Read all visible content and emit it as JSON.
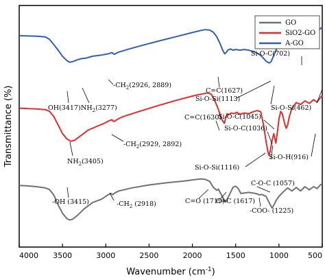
{
  "chart_data": {
    "type": "line",
    "title": "",
    "xlabel": "Wavenumber (cm",
    "xlabel_sup": "-1",
    "xlabel_close": ")",
    "ylabel": "Transmittance (%)",
    "xlim": [
      4000,
      500
    ],
    "x_ticks": [
      4000,
      3500,
      3000,
      2500,
      2000,
      1500,
      1000,
      500
    ],
    "y_ticks_shown": false,
    "grid": false,
    "legend_position": "top-right",
    "colors": {
      "GO": "#707070",
      "SiO2-GO": "#e32b2b",
      "A-GO": "#2f5fb3"
    },
    "series": [
      {
        "name": "GO",
        "legend_label": "GO",
        "color": "#707070",
        "points": [
          [
            4000,
            0.255
          ],
          [
            3900,
            0.253
          ],
          [
            3800,
            0.25
          ],
          [
            3700,
            0.245
          ],
          [
            3650,
            0.238
          ],
          [
            3600,
            0.215
          ],
          [
            3550,
            0.175
          ],
          [
            3500,
            0.14
          ],
          [
            3450,
            0.118
          ],
          [
            3415,
            0.112
          ],
          [
            3380,
            0.116
          ],
          [
            3330,
            0.13
          ],
          [
            3250,
            0.158
          ],
          [
            3150,
            0.185
          ],
          [
            3050,
            0.198
          ],
          [
            2980,
            0.215
          ],
          [
            2940,
            0.222
          ],
          [
            2918,
            0.217
          ],
          [
            2900,
            0.223
          ],
          [
            2850,
            0.232
          ],
          [
            2700,
            0.245
          ],
          [
            2500,
            0.257
          ],
          [
            2300,
            0.266
          ],
          [
            2100,
            0.273
          ],
          [
            1950,
            0.28
          ],
          [
            1900,
            0.282
          ],
          [
            1850,
            0.28
          ],
          [
            1800,
            0.272
          ],
          [
            1760,
            0.248
          ],
          [
            1719,
            0.235
          ],
          [
            1700,
            0.24
          ],
          [
            1680,
            0.226
          ],
          [
            1640,
            0.2
          ],
          [
            1617,
            0.186
          ],
          [
            1600,
            0.197
          ],
          [
            1560,
            0.225
          ],
          [
            1530,
            0.248
          ],
          [
            1500,
            0.252
          ],
          [
            1470,
            0.242
          ],
          [
            1440,
            0.222
          ],
          [
            1400,
            0.224
          ],
          [
            1350,
            0.226
          ],
          [
            1300,
            0.224
          ],
          [
            1250,
            0.22
          ],
          [
            1225,
            0.216
          ],
          [
            1200,
            0.218
          ],
          [
            1150,
            0.21
          ],
          [
            1100,
            0.175
          ],
          [
            1080,
            0.162
          ],
          [
            1057,
            0.175
          ],
          [
            1030,
            0.195
          ],
          [
            1000,
            0.21
          ],
          [
            960,
            0.225
          ],
          [
            900,
            0.245
          ],
          [
            850,
            0.232
          ],
          [
            800,
            0.247
          ],
          [
            750,
            0.232
          ],
          [
            700,
            0.25
          ],
          [
            650,
            0.237
          ],
          [
            600,
            0.25
          ],
          [
            560,
            0.242
          ],
          [
            520,
            0.258
          ],
          [
            500,
            0.262
          ]
        ]
      },
      {
        "name": "SiO2-GO",
        "legend_label": "SiO2-GO",
        "color": "#e32b2b",
        "points": [
          [
            4000,
            0.575
          ],
          [
            3900,
            0.573
          ],
          [
            3800,
            0.572
          ],
          [
            3700,
            0.569
          ],
          [
            3650,
            0.562
          ],
          [
            3600,
            0.54
          ],
          [
            3550,
            0.505
          ],
          [
            3500,
            0.47
          ],
          [
            3450,
            0.448
          ],
          [
            3405,
            0.438
          ],
          [
            3360,
            0.442
          ],
          [
            3300,
            0.458
          ],
          [
            3200,
            0.485
          ],
          [
            3100,
            0.5
          ],
          [
            3020,
            0.512
          ],
          [
            2960,
            0.523
          ],
          [
            2929,
            0.527
          ],
          [
            2910,
            0.52
          ],
          [
            2892,
            0.522
          ],
          [
            2870,
            0.528
          ],
          [
            2800,
            0.54
          ],
          [
            2600,
            0.563
          ],
          [
            2400,
            0.585
          ],
          [
            2200,
            0.606
          ],
          [
            2000,
            0.625
          ],
          [
            1900,
            0.633
          ],
          [
            1820,
            0.638
          ],
          [
            1780,
            0.632
          ],
          [
            1740,
            0.605
          ],
          [
            1700,
            0.57
          ],
          [
            1660,
            0.528
          ],
          [
            1630,
            0.512
          ],
          [
            1615,
            0.535
          ],
          [
            1600,
            0.552
          ],
          [
            1580,
            0.548
          ],
          [
            1550,
            0.555
          ],
          [
            1520,
            0.552
          ],
          [
            1490,
            0.558
          ],
          [
            1450,
            0.55
          ],
          [
            1400,
            0.555
          ],
          [
            1350,
            0.552
          ],
          [
            1300,
            0.56
          ],
          [
            1250,
            0.565
          ],
          [
            1210,
            0.56
          ],
          [
            1180,
            0.51
          ],
          [
            1150,
            0.44
          ],
          [
            1130,
            0.4
          ],
          [
            1116,
            0.38
          ],
          [
            1100,
            0.398
          ],
          [
            1080,
            0.44
          ],
          [
            1060,
            0.47
          ],
          [
            1045,
            0.445
          ],
          [
            1036,
            0.43
          ],
          [
            1020,
            0.47
          ],
          [
            1000,
            0.53
          ],
          [
            980,
            0.562
          ],
          [
            960,
            0.55
          ],
          [
            940,
            0.52
          ],
          [
            925,
            0.5
          ],
          [
            916,
            0.492
          ],
          [
            900,
            0.505
          ],
          [
            880,
            0.54
          ],
          [
            850,
            0.575
          ],
          [
            800,
            0.598
          ],
          [
            750,
            0.59
          ],
          [
            700,
            0.605
          ],
          [
            650,
            0.595
          ],
          [
            600,
            0.61
          ],
          [
            560,
            0.6
          ],
          [
            520,
            0.62
          ],
          [
            500,
            0.626
          ]
        ]
      },
      {
        "name": "A-GO",
        "legend_label": "A-GO",
        "color": "#2f5fb3",
        "points": [
          [
            4000,
            0.875
          ],
          [
            3900,
            0.874
          ],
          [
            3800,
            0.873
          ],
          [
            3700,
            0.87
          ],
          [
            3650,
            0.86
          ],
          [
            3600,
            0.838
          ],
          [
            3550,
            0.815
          ],
          [
            3500,
            0.79
          ],
          [
            3450,
            0.772
          ],
          [
            3417,
            0.765
          ],
          [
            3380,
            0.768
          ],
          [
            3330,
            0.775
          ],
          [
            3277,
            0.78
          ],
          [
            3230,
            0.782
          ],
          [
            3150,
            0.79
          ],
          [
            3050,
            0.795
          ],
          [
            2970,
            0.8
          ],
          [
            2926,
            0.805
          ],
          [
            2905,
            0.798
          ],
          [
            2889,
            0.8
          ],
          [
            2860,
            0.806
          ],
          [
            2750,
            0.818
          ],
          [
            2600,
            0.833
          ],
          [
            2400,
            0.852
          ],
          [
            2200,
            0.87
          ],
          [
            2000,
            0.888
          ],
          [
            1900,
            0.897
          ],
          [
            1850,
            0.9
          ],
          [
            1800,
            0.898
          ],
          [
            1760,
            0.89
          ],
          [
            1720,
            0.872
          ],
          [
            1680,
            0.842
          ],
          [
            1650,
            0.815
          ],
          [
            1627,
            0.8
          ],
          [
            1610,
            0.805
          ],
          [
            1590,
            0.815
          ],
          [
            1560,
            0.82
          ],
          [
            1530,
            0.815
          ],
          [
            1500,
            0.818
          ],
          [
            1450,
            0.815
          ],
          [
            1400,
            0.818
          ],
          [
            1350,
            0.815
          ],
          [
            1300,
            0.81
          ],
          [
            1250,
            0.803
          ],
          [
            1200,
            0.79
          ],
          [
            1150,
            0.77
          ],
          [
            1113,
            0.762
          ],
          [
            1090,
            0.768
          ],
          [
            1070,
            0.785
          ],
          [
            1045,
            0.805
          ],
          [
            1020,
            0.828
          ],
          [
            1000,
            0.845
          ],
          [
            950,
            0.86
          ],
          [
            900,
            0.87
          ],
          [
            850,
            0.868
          ],
          [
            800,
            0.88
          ],
          [
            750,
            0.87
          ],
          [
            702,
            0.882
          ],
          [
            650,
            0.88
          ],
          [
            600,
            0.893
          ],
          [
            560,
            0.89
          ],
          [
            520,
            0.905
          ],
          [
            500,
            0.91
          ]
        ]
      }
    ],
    "annotations": [
      {
        "id": "ago-oh",
        "text": "OH(3417)"
      },
      {
        "id": "ago-nh2",
        "text": "NH",
        "sub": "2",
        "rest": "(3277)"
      },
      {
        "id": "ago-ch2",
        "text": "-CH",
        "sub": "2",
        "rest": "(2926, 2889)"
      },
      {
        "id": "ago-cc",
        "text": "C=C(1627)"
      },
      {
        "id": "ago-siosi",
        "text": "Si-O-Si(1113)"
      },
      {
        "id": "ago-sioc702",
        "text": "Si-O-C(702)"
      },
      {
        "id": "ago-sio462",
        "text": "Si-O-Si(462)"
      },
      {
        "id": "sgo-sioc1045",
        "text": "Si-O-C(1045)"
      },
      {
        "id": "sgo-cc",
        "text": "C=C(1630)"
      },
      {
        "id": "sgo-sioc1036",
        "text": "Si-O-C(1036)"
      },
      {
        "id": "sgo-ch2",
        "text": "-CH",
        "sub": "2",
        "rest": "(2929, 2892)"
      },
      {
        "id": "sgo-nh2",
        "text": "NH",
        "sub": "2",
        "rest": "(3405)"
      },
      {
        "id": "sgo-siosi",
        "text": "Si-O-Si(1116)"
      },
      {
        "id": "sgo-sioh",
        "text": "Si-O-H(916)"
      },
      {
        "id": "go-coc",
        "text": "C-O-C (1057)"
      },
      {
        "id": "go-co",
        "text": "C=O (1719)"
      },
      {
        "id": "go-cc",
        "text": "C=C (1617)"
      },
      {
        "id": "go-oh",
        "text": "-OH (3415)"
      },
      {
        "id": "go-ch2",
        "text": "-CH",
        "sub": "2",
        "rest": " (2918)"
      },
      {
        "id": "go-coo",
        "text": "-COO- (1225)"
      }
    ]
  }
}
